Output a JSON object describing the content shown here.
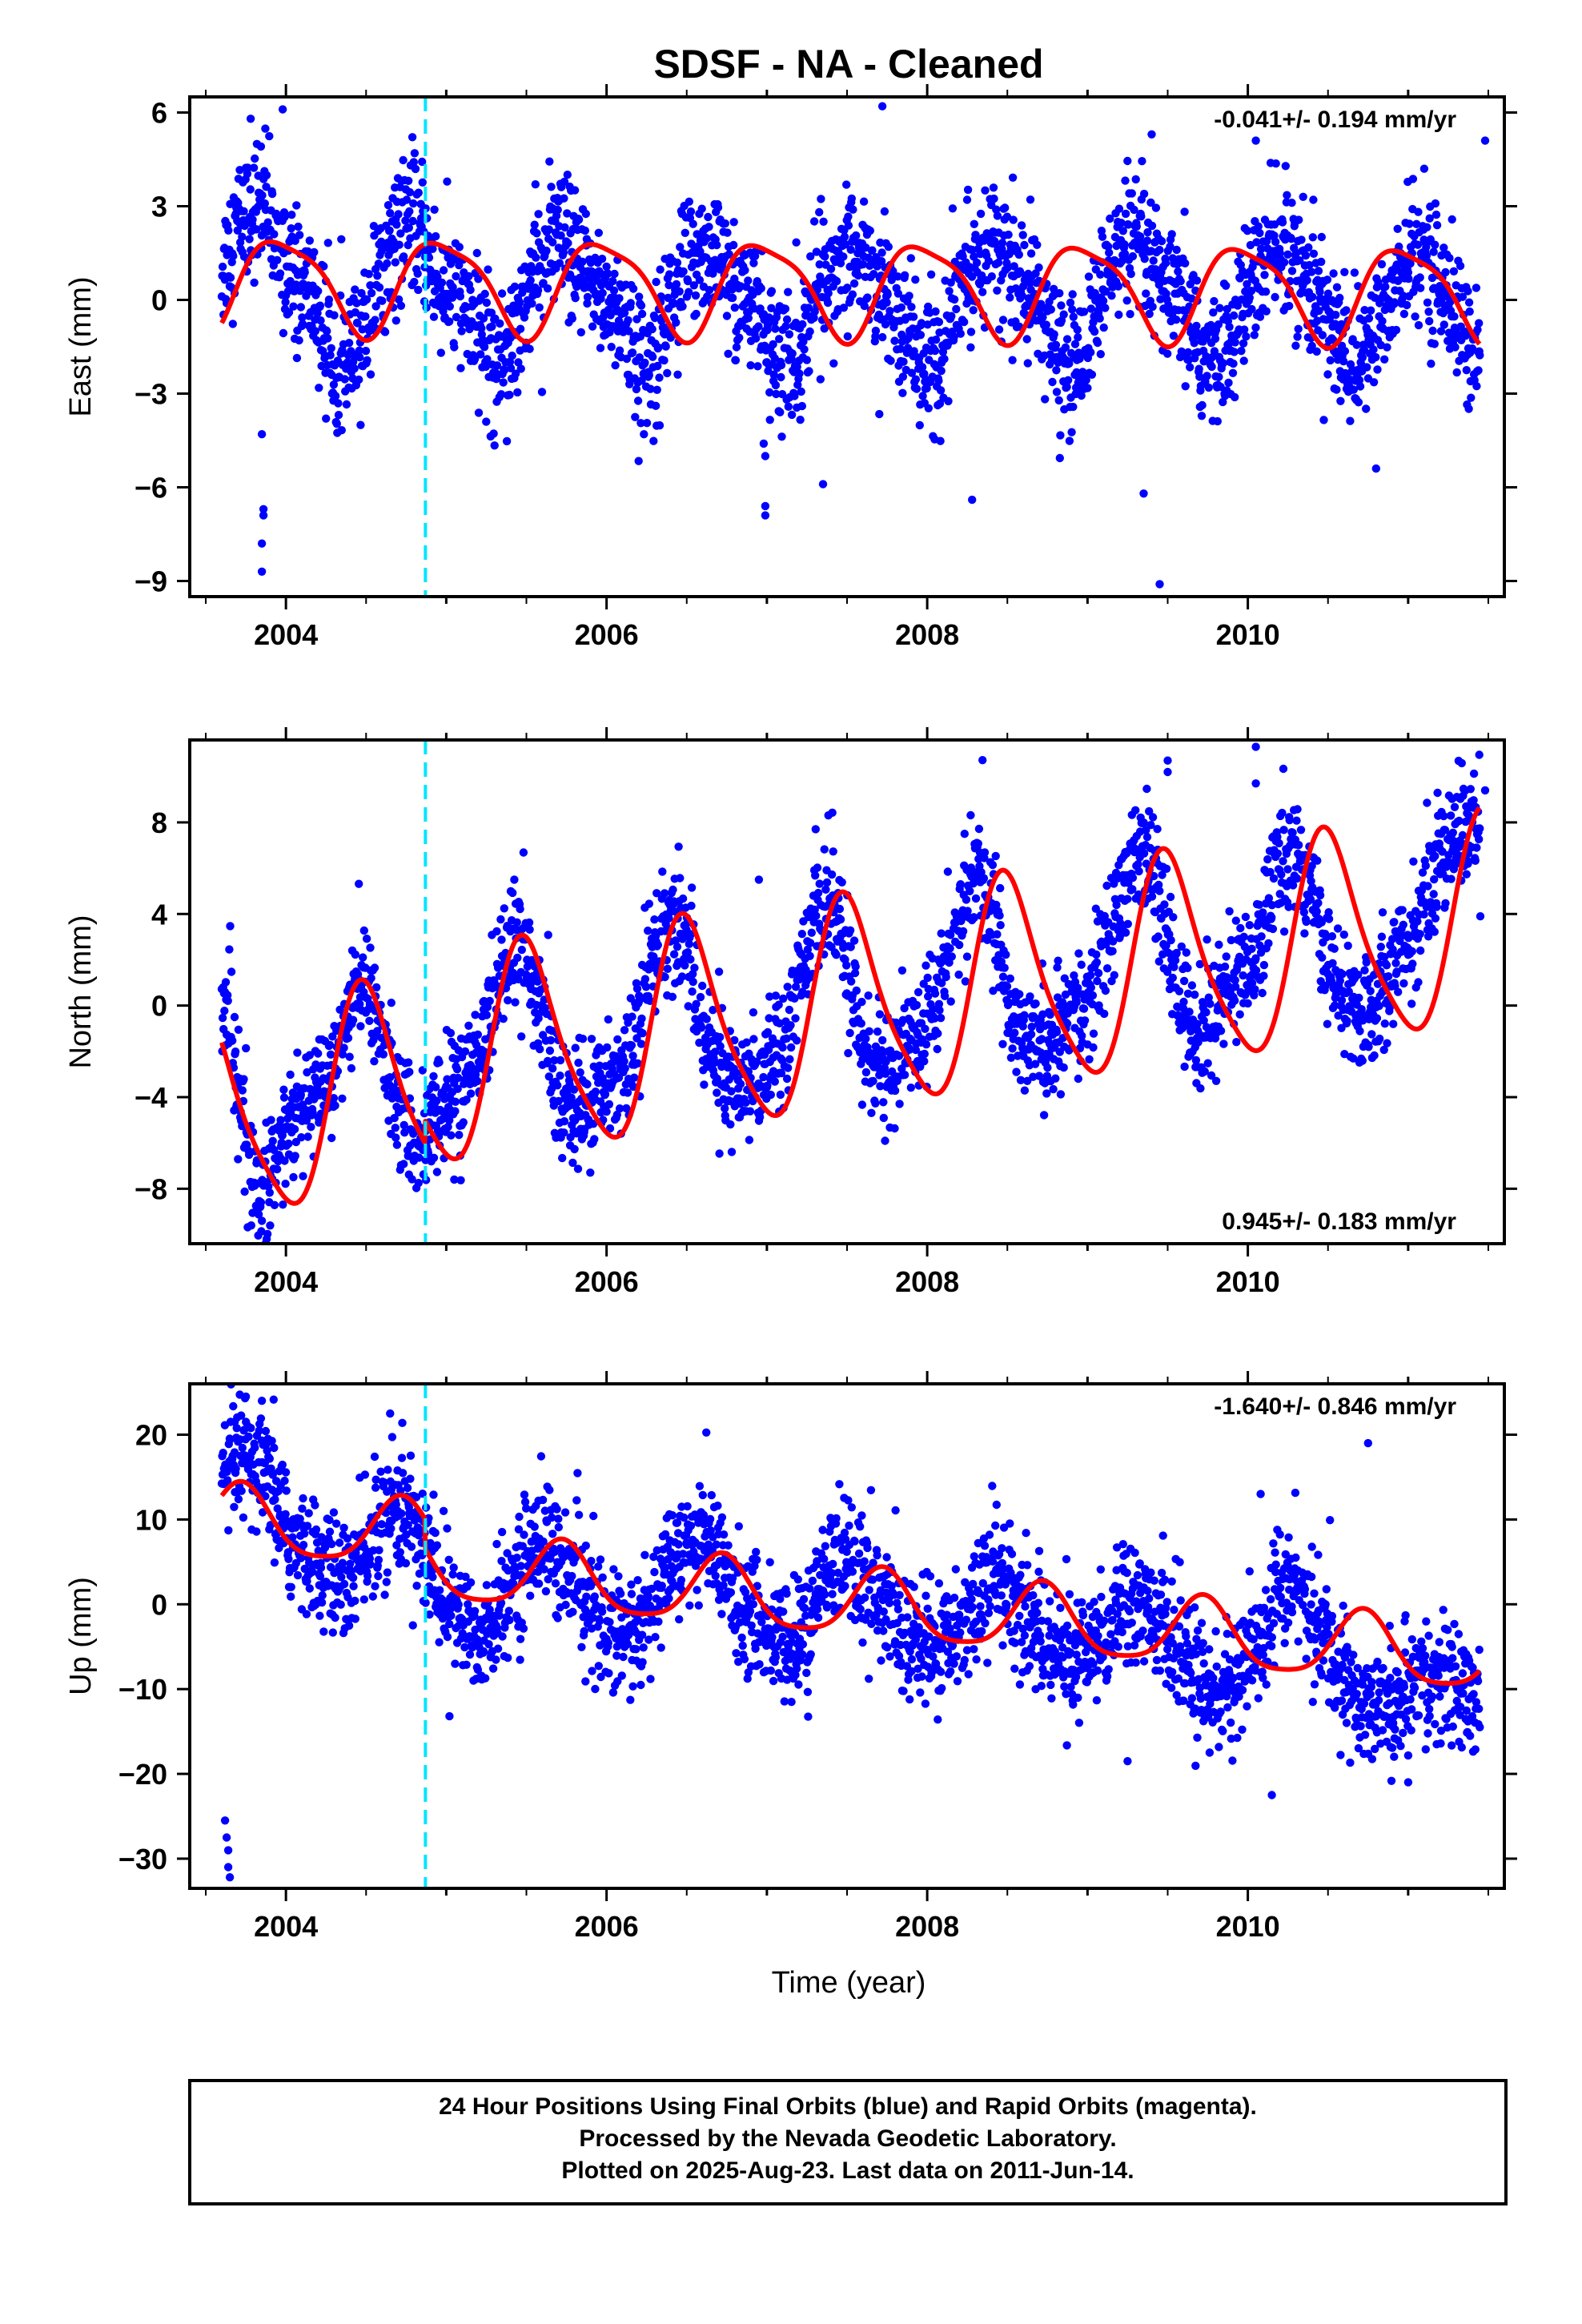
{
  "title": "SDSF  - NA - Cleaned",
  "colors": {
    "points": "#0000ff",
    "fit": "#ff0000",
    "equipment_change": "#00e5ff",
    "frame": "#000000"
  },
  "xlabel": "Time (year)",
  "footer": {
    "line1": "24 Hour Positions Using Final Orbits (blue) and Rapid Orbits (magenta).",
    "line2": "Processed by the Nevada Geodetic Laboratory.",
    "line3": "Plotted on 2025-Aug-23. Last data on 2011-Jun-14."
  },
  "chart_data": [
    {
      "type": "scatter",
      "name": "east",
      "ylabel": "East (mm)",
      "rate_label": "-0.041+/- 0.194 mm/yr",
      "rate_position": "top-right",
      "xlim": [
        2003.4,
        2011.6
      ],
      "ylim": [
        -9.5,
        6.5
      ],
      "yticks": [
        -9,
        -6,
        -3,
        0,
        3,
        6
      ],
      "xticks": [
        2004,
        2006,
        2008,
        2010
      ],
      "tick_labels": {
        "x": [
          "2004",
          "2006",
          "2008",
          "2010"
        ],
        "y": [
          "−9",
          "−6",
          "−3",
          "0",
          "3",
          "6"
        ]
      },
      "equipment_change": 2004.87,
      "data_start": 2003.6,
      "data_end": 2011.45,
      "model": {
        "offset": 0.4,
        "rate": -0.041,
        "annual_amp": 1.5,
        "annual_phase_year": 2003.73,
        "semiannual_amp": 0.35,
        "semiannual_phase_year": 2003.65,
        "t0": 2007.5
      },
      "series": [
        {
          "name": "daily positions",
          "x": [
            2003.62,
            2003.7,
            2003.78,
            2003.85,
            2003.95,
            2004.05,
            2004.15,
            2004.25,
            2004.35,
            2004.45,
            2004.55,
            2004.65,
            2004.75,
            2004.85,
            2004.95,
            2005.1,
            2005.2,
            2005.3,
            2005.4,
            2005.5,
            2005.6,
            2005.7,
            2005.8,
            2005.9,
            2006.0,
            2006.1,
            2006.2,
            2006.3,
            2006.4,
            2006.5,
            2006.6,
            2006.7,
            2006.8,
            2006.9,
            2007.0,
            2007.1,
            2007.2,
            2007.3,
            2007.4,
            2007.5,
            2007.6,
            2007.7,
            2007.8,
            2007.9,
            2008.0,
            2008.1,
            2008.2,
            2008.3,
            2008.4,
            2008.5,
            2008.6,
            2008.7,
            2008.8,
            2008.9,
            2009.0,
            2009.1,
            2009.2,
            2009.3,
            2009.4,
            2009.5,
            2009.6,
            2009.7,
            2009.8,
            2009.9,
            2010.0,
            2010.1,
            2010.2,
            2010.3,
            2010.4,
            2010.5,
            2010.6,
            2010.7,
            2010.8,
            2010.9,
            2011.0,
            2011.1,
            2011.2,
            2011.3,
            2011.4
          ],
          "y": [
            1.2,
            2.5,
            2.8,
            3.2,
            1.6,
            0.6,
            0.3,
            -1.2,
            -2.1,
            -1.8,
            0.3,
            1.8,
            2.6,
            2.1,
            0.5,
            0.1,
            -0.8,
            -2.0,
            -1.4,
            0.4,
            1.3,
            2.0,
            1.2,
            0.6,
            0.1,
            -0.6,
            -2.1,
            -1.9,
            0.1,
            1.0,
            1.8,
            1.2,
            0.2,
            -0.2,
            -1.1,
            -2.1,
            -1.8,
            0.3,
            1.2,
            1.6,
            1.1,
            0.3,
            -0.3,
            -1.2,
            -2.2,
            -1.7,
            0.2,
            1.3,
            2.0,
            1.1,
            0.4,
            -0.3,
            -1.6,
            -2.2,
            -1.3,
            0.5,
            1.4,
            1.8,
            0.9,
            0.3,
            -0.4,
            -1.7,
            -2.0,
            -1.3,
            0.4,
            1.2,
            1.9,
            1.2,
            0.3,
            -0.5,
            -1.8,
            -2.1,
            -1.0,
            0.4,
            1.2,
            1.5,
            0.6,
            -0.6,
            -1.6
          ],
          "outliers": [
            [
              2003.85,
              -4.3
            ],
            [
              2003.86,
              -6.7
            ],
            [
              2003.86,
              -6.9
            ],
            [
              2003.85,
              -7.8
            ],
            [
              2003.85,
              -8.7
            ],
            [
              2003.98,
              6.1
            ],
            [
              2003.78,
              5.8
            ],
            [
              2004.25,
              -3.8
            ],
            [
              2006.98,
              -4.6
            ],
            [
              2006.99,
              -5.0
            ],
            [
              2006.99,
              -6.6
            ],
            [
              2006.99,
              -6.9
            ],
            [
              2007.35,
              -5.9
            ],
            [
              2007.72,
              6.2
            ],
            [
              2008.28,
              -6.4
            ],
            [
              2009.35,
              -6.2
            ],
            [
              2009.4,
              5.3
            ],
            [
              2009.45,
              -9.1
            ],
            [
              2010.05,
              5.1
            ],
            [
              2010.8,
              -5.4
            ],
            [
              2011.1,
              4.2
            ],
            [
              2011.48,
              5.1
            ]
          ]
        }
      ]
    },
    {
      "type": "scatter",
      "name": "north",
      "ylabel": "North (mm)",
      "rate_label": "0.945+/- 0.183 mm/yr",
      "rate_position": "bottom-right",
      "xlim": [
        2003.4,
        2011.6
      ],
      "ylim": [
        -10.4,
        11.6
      ],
      "yticks": [
        -8,
        -4,
        0,
        4,
        8
      ],
      "xticks": [
        2004,
        2006,
        2008,
        2010
      ],
      "tick_labels": {
        "x": [
          "2004",
          "2006",
          "2008",
          "2010"
        ],
        "y": [
          "−8",
          "−4",
          "0",
          "4",
          "8"
        ]
      },
      "equipment_change": 2004.87,
      "data_start": 2003.6,
      "data_end": 2011.45,
      "model": {
        "offset": -0.1,
        "rate": 0.945,
        "annual_amp": 4.5,
        "annual_phase_year": 2003.25,
        "semiannual_amp": 0.8,
        "semiannual_phase_year": 2003.3,
        "t0": 2007.5,
        "pre_break_offset": -1.0
      },
      "series": [
        {
          "name": "daily positions",
          "x": [
            2003.62,
            2003.7,
            2003.8,
            2003.9,
            2004.0,
            2004.1,
            2004.2,
            2004.3,
            2004.4,
            2004.5,
            2004.6,
            2004.7,
            2004.8,
            2004.9,
            2005.0,
            2005.1,
            2005.2,
            2005.3,
            2005.4,
            2005.5,
            2005.6,
            2005.7,
            2005.8,
            2005.9,
            2006.0,
            2006.1,
            2006.2,
            2006.3,
            2006.4,
            2006.5,
            2006.6,
            2006.7,
            2006.8,
            2006.9,
            2007.0,
            2007.1,
            2007.2,
            2007.3,
            2007.4,
            2007.5,
            2007.6,
            2007.7,
            2007.8,
            2007.9,
            2008.0,
            2008.1,
            2008.2,
            2008.3,
            2008.4,
            2008.5,
            2008.6,
            2008.7,
            2008.8,
            2008.9,
            2009.0,
            2009.1,
            2009.2,
            2009.3,
            2009.4,
            2009.5,
            2009.6,
            2009.7,
            2009.8,
            2009.9,
            2010.0,
            2010.1,
            2010.2,
            2010.3,
            2010.4,
            2010.5,
            2010.6,
            2010.7,
            2010.8,
            2010.9,
            2011.0,
            2011.1,
            2011.2,
            2011.3,
            2011.4
          ],
          "y": [
            -0.5,
            -3.0,
            -8.2,
            -7.5,
            -5.5,
            -4.8,
            -3.8,
            -2.6,
            0.0,
            1.2,
            -1.6,
            -4.0,
            -6.1,
            -5.6,
            -4.0,
            -3.6,
            -2.5,
            0.5,
            2.8,
            2.5,
            -0.8,
            -3.7,
            -5.0,
            -4.2,
            -3.4,
            -2.7,
            -0.5,
            2.5,
            3.8,
            3.0,
            -1.0,
            -2.8,
            -4.0,
            -3.4,
            -2.2,
            -1.5,
            1.6,
            3.8,
            4.5,
            1.8,
            -1.8,
            -2.7,
            -2.8,
            -1.2,
            -0.8,
            1.6,
            3.6,
            5.6,
            4.6,
            0.3,
            -1.2,
            -1.5,
            -1.8,
            -0.6,
            0.2,
            2.2,
            4.5,
            6.6,
            6.2,
            2.5,
            0.0,
            -1.4,
            0.0,
            1.2,
            1.4,
            3.5,
            6.5,
            6.7,
            5.3,
            1.5,
            0.3,
            -0.5,
            0.4,
            1.8,
            2.4,
            4.5,
            6.8,
            7.5,
            7.8
          ],
          "outliers": [
            [
              2003.88,
              -10.2
            ],
            [
              2003.85,
              -9.4
            ],
            [
              2005.05,
              -7.6
            ],
            [
              2009.5,
              10.7
            ],
            [
              2009.5,
              10.2
            ],
            [
              2010.05,
              11.3
            ],
            [
              2010.05,
              9.7
            ],
            [
              2006.95,
              5.5
            ],
            [
              2011.48,
              9.4
            ],
            [
              2011.45,
              3.9
            ]
          ]
        }
      ]
    },
    {
      "type": "scatter",
      "name": "up",
      "ylabel": "Up (mm)",
      "rate_label": "-1.640+/- 0.846 mm/yr",
      "rate_position": "top-right",
      "xlim": [
        2003.4,
        2011.6
      ],
      "ylim": [
        -33.5,
        26.0
      ],
      "yticks": [
        -30,
        -20,
        -10,
        0,
        10,
        20
      ],
      "xticks": [
        2004,
        2006,
        2008,
        2010
      ],
      "tick_labels": {
        "x": [
          "2004",
          "2006",
          "2008",
          "2010"
        ],
        "y": [
          "−30",
          "−20",
          "−10",
          "0",
          "10",
          "20"
        ]
      },
      "equipment_change": 2004.87,
      "data_start": 2003.6,
      "data_end": 2011.45,
      "model": {
        "offset": 0.0,
        "rate": -1.64,
        "annual_amp": 4.0,
        "annual_phase_year": 2003.47,
        "semiannual_amp": 0.8,
        "semiannual_phase_year": 2003.6,
        "t0": 2007.5,
        "pre_break_offset": 3.5
      },
      "series": [
        {
          "name": "daily positions",
          "x": [
            2003.62,
            2003.7,
            2003.8,
            2003.9,
            2004.0,
            2004.1,
            2004.2,
            2004.3,
            2004.4,
            2004.5,
            2004.6,
            2004.7,
            2004.8,
            2004.9,
            2005.0,
            2005.1,
            2005.2,
            2005.3,
            2005.4,
            2005.5,
            2005.6,
            2005.7,
            2005.8,
            2005.9,
            2006.0,
            2006.1,
            2006.2,
            2006.3,
            2006.4,
            2006.5,
            2006.6,
            2006.7,
            2006.8,
            2006.9,
            2007.0,
            2007.1,
            2007.2,
            2007.3,
            2007.4,
            2007.5,
            2007.6,
            2007.7,
            2007.8,
            2007.9,
            2008.0,
            2008.1,
            2008.2,
            2008.3,
            2008.4,
            2008.5,
            2008.6,
            2008.7,
            2008.8,
            2008.9,
            2009.0,
            2009.1,
            2009.2,
            2009.3,
            2009.4,
            2009.5,
            2009.6,
            2009.7,
            2009.8,
            2009.9,
            2010.0,
            2010.1,
            2010.2,
            2010.3,
            2010.4,
            2010.5,
            2010.6,
            2010.7,
            2010.8,
            2010.9,
            2011.0,
            2011.1,
            2011.2,
            2011.3,
            2011.4
          ],
          "y": [
            14.0,
            17.5,
            15.8,
            14.2,
            8.4,
            6.0,
            4.5,
            3.2,
            2.8,
            6.5,
            10.0,
            11.8,
            9.5,
            4.5,
            0.5,
            -2.0,
            -4.0,
            -2.5,
            2.0,
            5.8,
            7.8,
            5.5,
            2.0,
            0.5,
            -2.5,
            -3.5,
            -3.5,
            -0.5,
            5.5,
            7.5,
            7.8,
            5.8,
            1.2,
            -1.2,
            -3.0,
            -5.0,
            -4.5,
            -0.5,
            5.5,
            6.0,
            2.5,
            1.5,
            -2.5,
            -4.0,
            -5.5,
            -4.8,
            -3.0,
            1.5,
            4.0,
            2.5,
            -1.0,
            -3.2,
            -5.2,
            -7.2,
            -6.2,
            -3.5,
            0.5,
            2.2,
            -0.5,
            -3.5,
            -7.5,
            -9.5,
            -10.2,
            -9.8,
            -6.5,
            -3.5,
            2.5,
            3.0,
            -2.2,
            -5.0,
            -9.0,
            -11.0,
            -11.5,
            -12.0,
            -11.0,
            -9.0,
            -8.8,
            -9.5,
            -11.5
          ],
          "outliers": [
            [
              2003.62,
              -25.5
            ],
            [
              2003.63,
              -27.5
            ],
            [
              2003.64,
              -29.0
            ],
            [
              2003.64,
              -31.0
            ],
            [
              2003.65,
              -32.2
            ],
            [
              2003.68,
              21.5
            ],
            [
              2003.75,
              24.5
            ],
            [
              2003.85,
              24.0
            ],
            [
              2004.65,
              22.5
            ],
            [
              2010.08,
              13.0
            ],
            [
              2010.75,
              19.0
            ],
            [
              2010.15,
              -22.5
            ],
            [
              2011.0,
              -21.0
            ],
            [
              2009.25,
              -18.5
            ],
            [
              2005.02,
              -13.2
            ]
          ]
        }
      ]
    }
  ]
}
